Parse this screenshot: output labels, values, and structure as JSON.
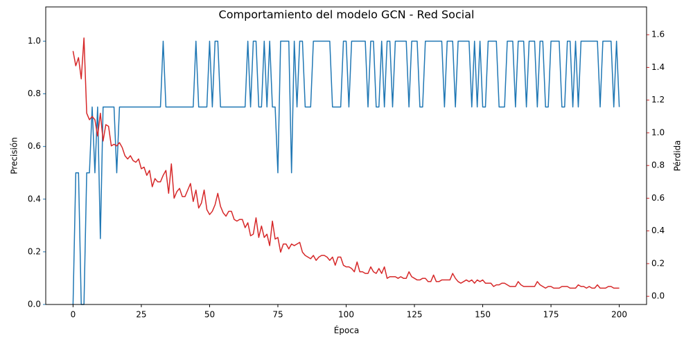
{
  "chart_data": {
    "type": "line",
    "title": "Comportamiento del modelo GCN - Red Social",
    "xlabel": "Época",
    "ylabel": "Precisión",
    "y2label": "Pérdida",
    "xlim": [
      -10,
      210
    ],
    "xticks": [
      0,
      25,
      50,
      75,
      100,
      125,
      150,
      175,
      200
    ],
    "ylim": [
      0,
      1.13
    ],
    "yticks": [
      {
        "value": 0,
        "label": "0.0"
      },
      0.2,
      0.4,
      0.6,
      0.8,
      {
        "value": 1,
        "label": "1.0"
      }
    ],
    "y2lim": [
      -0.05,
      1.77
    ],
    "y2ticks": [
      {
        "value": 0,
        "label": "0.0"
      },
      0.2,
      0.4,
      0.6,
      0.8,
      {
        "value": 1,
        "label": "1.0"
      },
      1.2,
      1.4,
      1.6
    ],
    "ycolor": "#1f77b4",
    "y2color": "#d62728",
    "series": [
      {
        "color": "#1f77b4",
        "axis": "y",
        "values": [
          0,
          0.5,
          0.5,
          0,
          0,
          0.5,
          0.5,
          0.75,
          0.5,
          0.75,
          0.25,
          0.75,
          0.75,
          0.75,
          0.75,
          0.75,
          0.5,
          0.75,
          0.75,
          0.75,
          0.75,
          0.75,
          0.75,
          0.75,
          0.75,
          0.75,
          0.75,
          0.75,
          0.75,
          0.75,
          0.75,
          0.75,
          0.75,
          1,
          0.75,
          0.75,
          0.75,
          0.75,
          0.75,
          0.75,
          0.75,
          0.75,
          0.75,
          0.75,
          0.75,
          1,
          0.75,
          0.75,
          0.75,
          0.75,
          1,
          0.75,
          1,
          1,
          0.75,
          0.75,
          0.75,
          0.75,
          0.75,
          0.75,
          0.75,
          0.75,
          0.75,
          0.75,
          1,
          0.75,
          1,
          1,
          0.75,
          0.75,
          1,
          0.75,
          1,
          0.75,
          0.75,
          0.5,
          1,
          1,
          1,
          1,
          0.5,
          1,
          0.75,
          1,
          1,
          0.75,
          0.75,
          0.75,
          1,
          1,
          1,
          1,
          1,
          1,
          1,
          0.75,
          0.75,
          0.75,
          0.75,
          1,
          1,
          0.75,
          1,
          1,
          1,
          1,
          1,
          1,
          0.75,
          1,
          1,
          0.75,
          0.75,
          1,
          0.75,
          1,
          1,
          0.75,
          1,
          1,
          1,
          1,
          1,
          0.75,
          1,
          1,
          1,
          0.75,
          0.75,
          1,
          1,
          1,
          1,
          1,
          1,
          1,
          0.75,
          1,
          1,
          1,
          0.75,
          1,
          1,
          1,
          1,
          1,
          0.75,
          1,
          0.75,
          1,
          0.75,
          0.75,
          1,
          1,
          1,
          1,
          0.75,
          0.75,
          0.75,
          1,
          1,
          1,
          0.75,
          1,
          1,
          1,
          0.75,
          1,
          1,
          1,
          0.75,
          1,
          1,
          0.75,
          0.75,
          1,
          1,
          1,
          1,
          0.75,
          0.75,
          1,
          1,
          0.75,
          1,
          0.75,
          1,
          1,
          1,
          1,
          1,
          1,
          1,
          0.75,
          1,
          1,
          1,
          1,
          0.75,
          1,
          0.75
        ]
      },
      {
        "color": "#d62728",
        "axis": "y2",
        "values": [
          1.5,
          1.41,
          1.46,
          1.33,
          1.58,
          1.12,
          1.08,
          1.1,
          1.08,
          0.98,
          1.12,
          0.95,
          1.05,
          1.04,
          0.92,
          0.93,
          0.92,
          0.94,
          0.91,
          0.86,
          0.84,
          0.86,
          0.83,
          0.82,
          0.84,
          0.78,
          0.79,
          0.74,
          0.77,
          0.67,
          0.72,
          0.7,
          0.7,
          0.74,
          0.77,
          0.63,
          0.81,
          0.6,
          0.64,
          0.66,
          0.61,
          0.61,
          0.65,
          0.69,
          0.58,
          0.65,
          0.54,
          0.57,
          0.65,
          0.53,
          0.5,
          0.52,
          0.56,
          0.63,
          0.55,
          0.51,
          0.49,
          0.52,
          0.52,
          0.47,
          0.46,
          0.47,
          0.47,
          0.42,
          0.45,
          0.37,
          0.38,
          0.48,
          0.36,
          0.43,
          0.36,
          0.38,
          0.31,
          0.46,
          0.35,
          0.36,
          0.27,
          0.32,
          0.32,
          0.29,
          0.32,
          0.31,
          0.32,
          0.33,
          0.27,
          0.25,
          0.24,
          0.23,
          0.25,
          0.22,
          0.24,
          0.25,
          0.25,
          0.24,
          0.22,
          0.24,
          0.19,
          0.24,
          0.24,
          0.19,
          0.18,
          0.18,
          0.17,
          0.15,
          0.21,
          0.15,
          0.15,
          0.14,
          0.14,
          0.18,
          0.15,
          0.14,
          0.17,
          0.14,
          0.18,
          0.11,
          0.12,
          0.12,
          0.12,
          0.11,
          0.12,
          0.11,
          0.11,
          0.15,
          0.12,
          0.11,
          0.1,
          0.1,
          0.11,
          0.11,
          0.09,
          0.09,
          0.13,
          0.09,
          0.09,
          0.1,
          0.1,
          0.1,
          0.1,
          0.14,
          0.11,
          0.09,
          0.08,
          0.09,
          0.1,
          0.09,
          0.1,
          0.08,
          0.1,
          0.09,
          0.1,
          0.08,
          0.08,
          0.08,
          0.06,
          0.07,
          0.07,
          0.08,
          0.08,
          0.07,
          0.06,
          0.06,
          0.06,
          0.09,
          0.07,
          0.06,
          0.06,
          0.06,
          0.06,
          0.06,
          0.09,
          0.07,
          0.06,
          0.05,
          0.06,
          0.06,
          0.05,
          0.05,
          0.05,
          0.06,
          0.06,
          0.06,
          0.05,
          0.05,
          0.05,
          0.07,
          0.06,
          0.06,
          0.05,
          0.06,
          0.05,
          0.05,
          0.07,
          0.05,
          0.05,
          0.05,
          0.06,
          0.06,
          0.05,
          0.05,
          0.05
        ]
      }
    ]
  }
}
